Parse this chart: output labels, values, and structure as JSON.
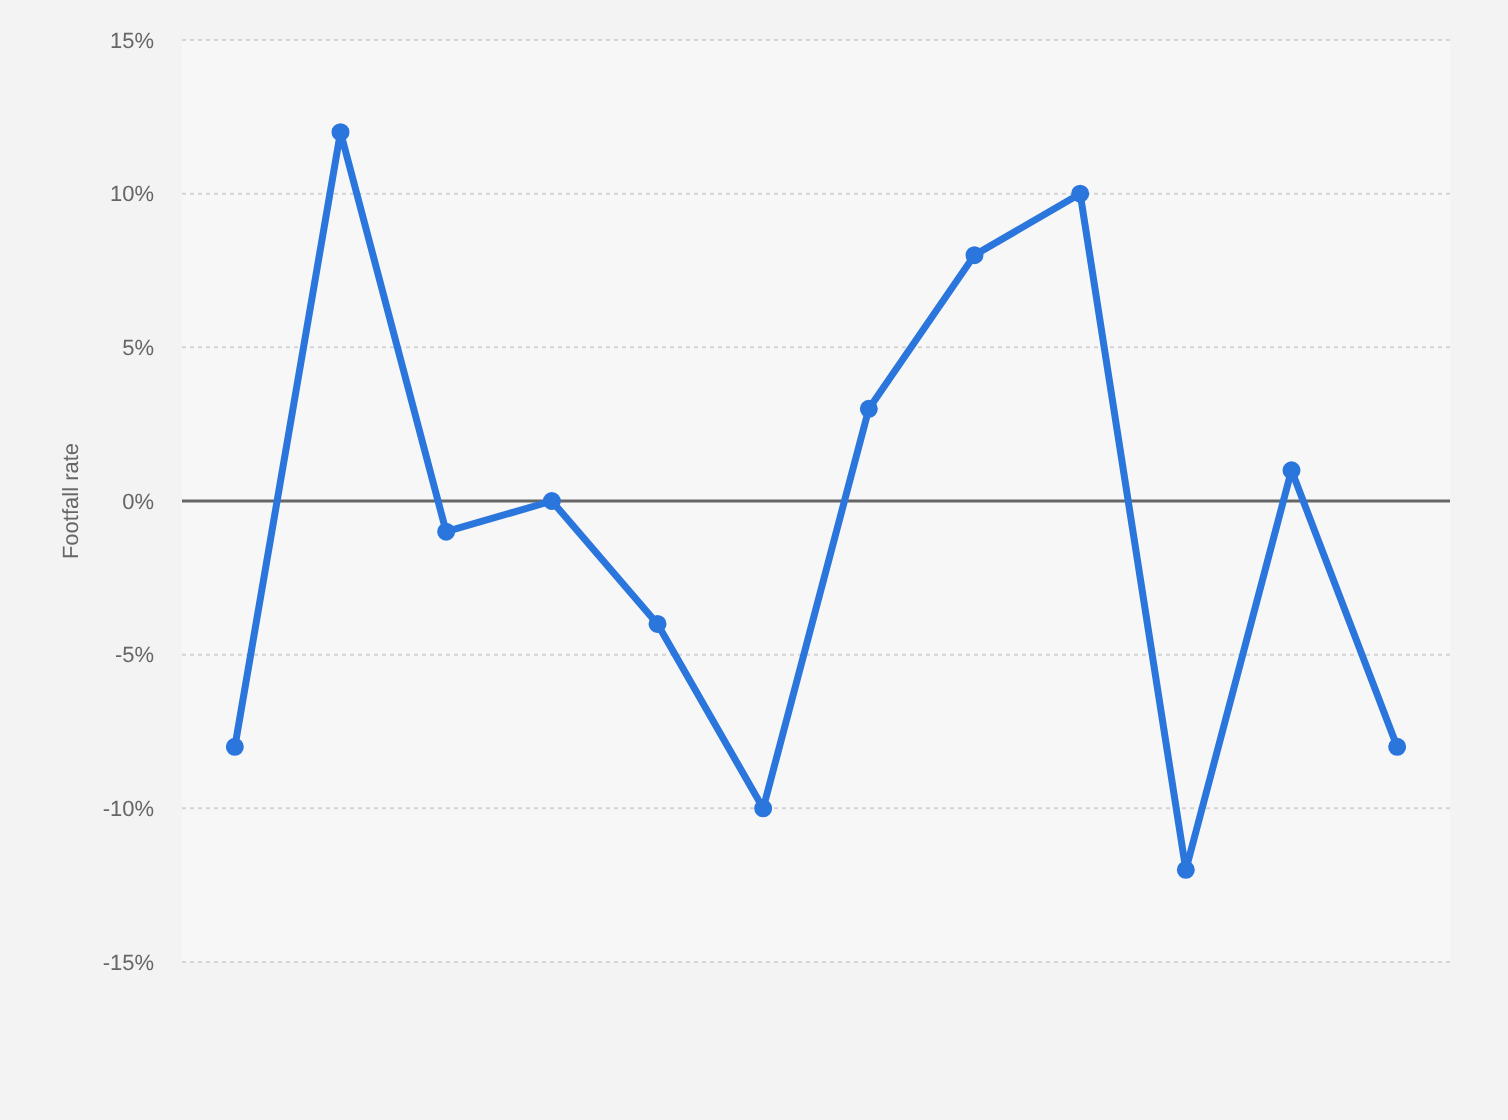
{
  "chart_data": {
    "type": "line",
    "ylabel": "Footfall rate",
    "categories": [
      null,
      null,
      null,
      null,
      null,
      null,
      null,
      null,
      null,
      null,
      null,
      null
    ],
    "values": [
      -8,
      12,
      -1,
      0,
      -4,
      -10,
      3,
      8,
      10,
      -12,
      1,
      -8
    ],
    "color": "#2a76dd",
    "ylim": [
      -15,
      15
    ],
    "yticks": [
      {
        "value": -15,
        "label": "-15%"
      },
      {
        "value": -10,
        "label": "-10%"
      },
      {
        "value": -5,
        "label": "-5%"
      },
      {
        "value": 0,
        "label": "0%"
      },
      {
        "value": 5,
        "label": "5%"
      },
      {
        "value": 10,
        "label": "10%"
      },
      {
        "value": 15,
        "label": "15%"
      }
    ],
    "ref_lines": [
      {
        "axis": "y",
        "value": 0,
        "color": "#666666"
      }
    ],
    "grid": "y",
    "marker": "circle",
    "line_style": "solid",
    "tick_labels": "y"
  }
}
